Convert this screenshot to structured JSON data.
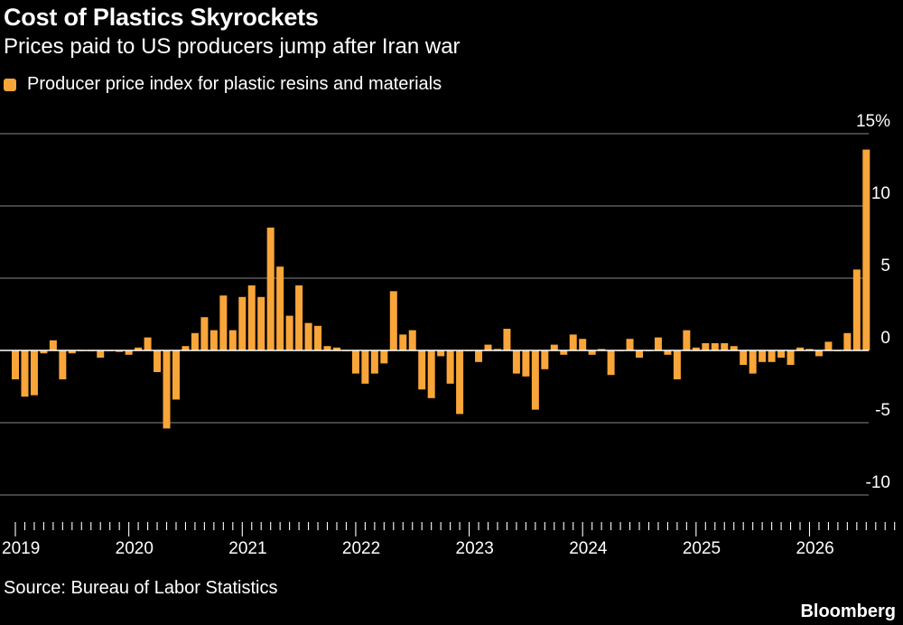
{
  "header": {
    "title": "Cost of Plastics Skyrockets",
    "subtitle": "Prices paid to US producers jump after Iran war"
  },
  "footer": {
    "source": "Source: Bureau of Labor Statistics",
    "brand": "Bloomberg"
  },
  "colors": {
    "bar": "#f8a53a",
    "background": "#000000",
    "grid": "#6e6e6e",
    "zero_line": "#ffffff"
  },
  "chart_data": {
    "type": "bar",
    "title": "Cost of Plastics Skyrockets",
    "subtitle": "Prices paid to US producers jump after Iran war",
    "series": [
      {
        "name": "Producer price index for plastic resins and materials",
        "start": "2019-01",
        "frequency": "monthly",
        "values": [
          -2.0,
          -3.2,
          -3.1,
          -0.2,
          0.7,
          -2.0,
          -0.2,
          0.0,
          0.0,
          -0.5,
          0.0,
          -0.1,
          -0.3,
          0.2,
          0.9,
          -1.5,
          -5.4,
          -3.4,
          0.3,
          1.2,
          2.3,
          1.4,
          3.8,
          1.4,
          3.7,
          4.5,
          3.7,
          8.5,
          5.8,
          2.4,
          4.5,
          1.9,
          1.7,
          0.3,
          0.2,
          0.0,
          -1.6,
          -2.3,
          -1.6,
          -0.9,
          4.1,
          1.1,
          1.4,
          -2.7,
          -3.3,
          -0.4,
          -2.3,
          -4.4,
          0.0,
          -0.8,
          0.4,
          0.1,
          1.5,
          -1.6,
          -1.8,
          -4.1,
          -1.3,
          0.4,
          -0.3,
          1.1,
          0.8,
          -0.3,
          0.1,
          -1.7,
          0.0,
          0.8,
          -0.5,
          0.0,
          0.9,
          -0.3,
          -2.0,
          1.4,
          0.2,
          0.5,
          0.5,
          0.5,
          0.3,
          -1.0,
          -1.6,
          -0.8,
          -0.8,
          -0.5,
          -1.0,
          0.2,
          0.1,
          -0.4,
          0.6,
          0.0,
          1.2,
          5.6,
          13.9
        ]
      }
    ],
    "x_ticks": [
      "2019",
      "2020",
      "2021",
      "2022",
      "2023",
      "2024",
      "2025",
      "2026"
    ],
    "y_ticks": [
      "15%",
      "10",
      "5",
      "0",
      "-5",
      "-10"
    ],
    "y_tick_values": [
      15,
      10,
      5,
      0,
      -5,
      -10
    ],
    "ylim": [
      -10,
      15
    ],
    "grid": true,
    "legend_position": "top-left",
    "source": "Source: Bureau of Labor Statistics"
  }
}
